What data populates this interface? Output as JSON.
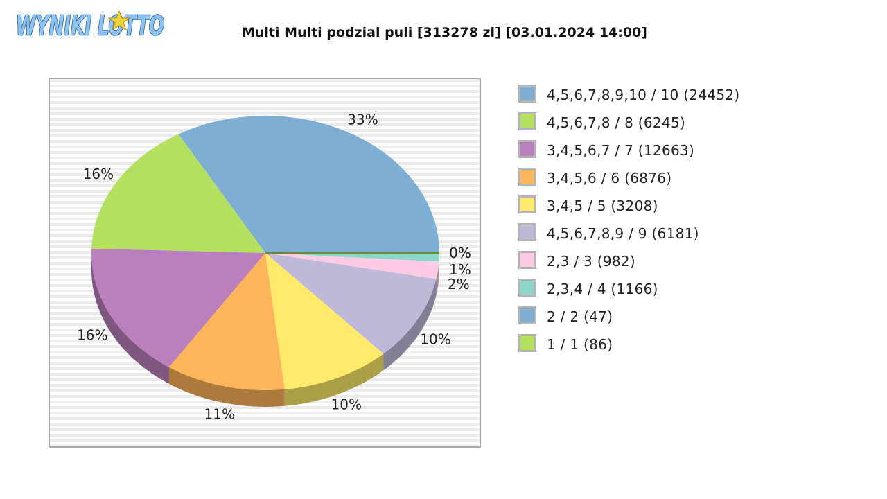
{
  "logo": {
    "text": "WYNIKI LOTTO",
    "colors": {
      "fill": "#8ec2ec",
      "outline": "#2f6fb0",
      "star": "#f4d23c"
    }
  },
  "chart_data": {
    "type": "pie",
    "title": "Multi Multi podzial puli [313278 zl] [03.01.2024 14:00]",
    "legend_position": "right",
    "slices": [
      {
        "name": "4,5,6,7,8,9,10 / 10 (24452)",
        "value": 33,
        "label": "33%",
        "color": "#7faed4"
      },
      {
        "name": "4,5,6,7,8 / 8 (6245)",
        "value": 16,
        "label": "16%",
        "color": "#b4e060"
      },
      {
        "name": "3,4,5,6,7 / 7 (12663)",
        "value": 16,
        "label": "16%",
        "color": "#bb7fbc"
      },
      {
        "name": "3,4,5,6 / 6 (6876)",
        "value": 11,
        "label": "11%",
        "color": "#feb45a"
      },
      {
        "name": "3,4,5 / 5 (3208)",
        "value": 10,
        "label": "10%",
        "color": "#feea68"
      },
      {
        "name": "4,5,6,7,8,9 / 9 (6181)",
        "value": 10,
        "label": "10%",
        "color": "#bfb9d9"
      },
      {
        "name": "2,3 / 3 (982)",
        "value": 2,
        "label": "2%",
        "color": "#fecbe4"
      },
      {
        "name": "2,3,4 / 4 (1166)",
        "value": 1,
        "label": "1%",
        "color": "#8ed6cc"
      },
      {
        "name": "2 / 2 (47)",
        "value": 0,
        "label": "0%",
        "color": "#7faed4"
      },
      {
        "name": "1 / 1 (86)",
        "value": 0,
        "label": "0%",
        "color": "#b4e060"
      }
    ]
  }
}
